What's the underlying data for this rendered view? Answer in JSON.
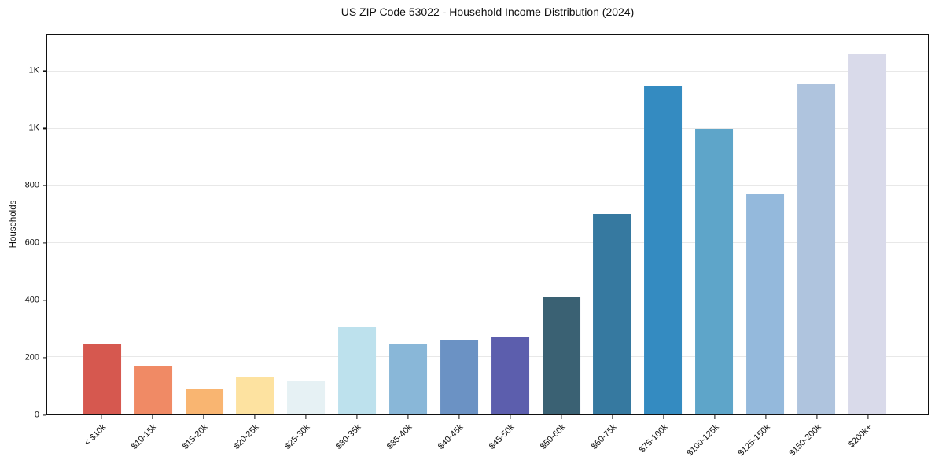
{
  "chart_data": {
    "type": "bar",
    "title": "US ZIP Code 53022 - Household Income Distribution (2024)",
    "xlabel": "",
    "ylabel": "Households",
    "categories": [
      "< $10k",
      "$10-15k",
      "$15-20k",
      "$20-25k",
      "$25-30k",
      "$30-35k",
      "$35-40k",
      "$40-45k",
      "$45-50k",
      "$50-60k",
      "$60-75k",
      "$75-100k",
      "$100-125k",
      "$125-150k",
      "$150-200k",
      "$200k+"
    ],
    "values": [
      245,
      170,
      88,
      130,
      116,
      306,
      246,
      261,
      271,
      409,
      702,
      1151,
      1000,
      772,
      1157,
      1262
    ],
    "bar_colors": [
      "#d6584f",
      "#f08a65",
      "#f9b571",
      "#fde2a0",
      "#e6f1f4",
      "#bde1ed",
      "#89b7d8",
      "#6b92c4",
      "#5c5ead",
      "#3a6173",
      "#3679a0",
      "#348bc1",
      "#5ea5c9",
      "#94b9dc",
      "#afc4de",
      "#d9daea"
    ],
    "ylim": [
      0,
      1330
    ],
    "yticks": [
      {
        "value": 0,
        "label": "0"
      },
      {
        "value": 200,
        "label": "200"
      },
      {
        "value": 400,
        "label": "400"
      },
      {
        "value": 600,
        "label": "600"
      },
      {
        "value": 800,
        "label": "800"
      },
      {
        "value": 1000,
        "label": "1K"
      },
      {
        "value": 1200,
        "label": "1K"
      }
    ],
    "grid": "horizontal",
    "legend": "none",
    "x_tick_rotation": 45
  },
  "style": {
    "background": "#ffffff",
    "grid_color": "#e8e8e8",
    "spine_color": "#111111",
    "text_color": "#111111"
  }
}
